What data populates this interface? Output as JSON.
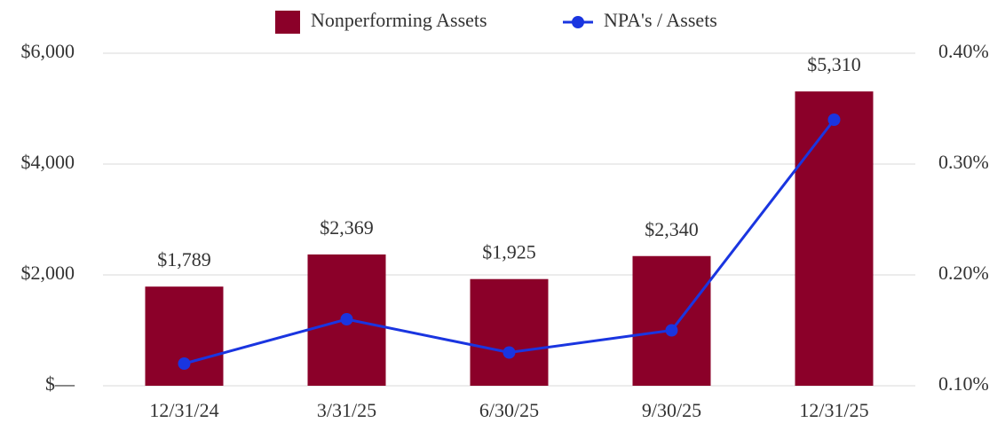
{
  "chart_data": {
    "type": "bar_line",
    "categories": [
      "12/31/24",
      "3/31/25",
      "6/30/25",
      "9/30/25",
      "12/31/25"
    ],
    "series": [
      {
        "name": "Nonperforming Assets",
        "color": "#8b0029",
        "values": [
          1789,
          2369,
          1925,
          2340,
          5310
        ],
        "value_labels": [
          "$1,789",
          "$2,369",
          "$1,925",
          "$2,340",
          "$5,310"
        ]
      },
      {
        "name": "NPA's / Assets",
        "color": "#1a35e0",
        "axis": "y2",
        "values": [
          0.12,
          0.16,
          0.13,
          0.15,
          0.34
        ]
      }
    ],
    "ylim": [
      0,
      6000
    ],
    "yticks": [
      {
        "value": 0,
        "label": "$—"
      },
      {
        "value": 2000,
        "label": "$2,000"
      },
      {
        "value": 4000,
        "label": "$4,000"
      },
      {
        "value": 6000,
        "label": "$6,000"
      }
    ],
    "y2lim": [
      0.1,
      0.4
    ],
    "y2ticks": [
      {
        "value": 0.1,
        "label": "0.10%"
      },
      {
        "value": 0.2,
        "label": "0.20%"
      },
      {
        "value": 0.3,
        "label": "0.30%"
      },
      {
        "value": 0.4,
        "label": "0.40%"
      }
    ],
    "grid": true,
    "legend": "top"
  }
}
